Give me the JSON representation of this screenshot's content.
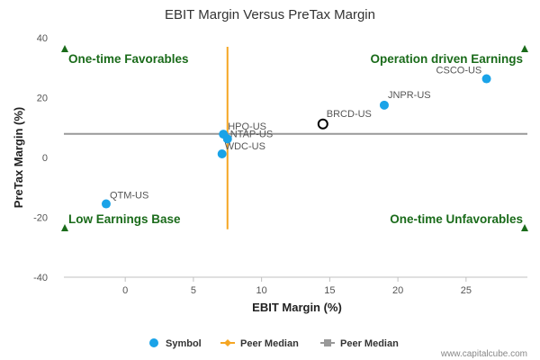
{
  "chart_data": {
    "type": "scatter",
    "title": "EBIT Margin Versus PreTax Margin",
    "xlabel": "EBIT Margin (%)",
    "ylabel": "PreTax Margin (%)",
    "xlim": [
      -4.5,
      29.5
    ],
    "ylim": [
      -40,
      40
    ],
    "xticks": [
      0,
      5,
      10,
      15,
      20,
      25
    ],
    "yticks": [
      -40,
      -20,
      0,
      20,
      40
    ],
    "grid": false,
    "points": [
      {
        "label": "CSCO-US",
        "x": 26.5,
        "y": 26.3
      },
      {
        "label": "JNPR-US",
        "x": 19.0,
        "y": 17.5
      },
      {
        "label": "BRCD-US",
        "x": 14.5,
        "y": 11.2,
        "highlight": true
      },
      {
        "label": "HPQ-US",
        "x": 7.2,
        "y": 7.8
      },
      {
        "label": "NTAP-US",
        "x": 7.5,
        "y": 6.2
      },
      {
        "label": "WDC-US",
        "x": 7.1,
        "y": 1.2
      },
      {
        "label": "QTM-US",
        "x": -1.4,
        "y": -15.5
      }
    ],
    "peer_median_x": 7.5,
    "peer_median_x_range": [
      -24,
      37
    ],
    "peer_median_y": 7.9,
    "quadrants": {
      "top_left": "One-time Favorables",
      "top_right": "Operation driven Earnings",
      "bottom_left": "Low Earnings Base",
      "bottom_right": "One-time Unfavorables"
    },
    "legend": {
      "placement": "bottom-center",
      "entries": [
        {
          "name": "Symbol",
          "color": "#1aa3e8"
        },
        {
          "name": "Peer Median",
          "color": "#f5a623"
        },
        {
          "name": "Peer Median",
          "color": "#999999"
        }
      ]
    },
    "colors": {
      "points": "#1aa3e8",
      "highlight_stroke": "#000000",
      "median_vertical": "#f5a623",
      "median_horizontal": "#999999",
      "quadrant_text": "#1a6b1a",
      "triangle": "#1a6b1a"
    }
  },
  "credit": "www.capitalcube.com"
}
